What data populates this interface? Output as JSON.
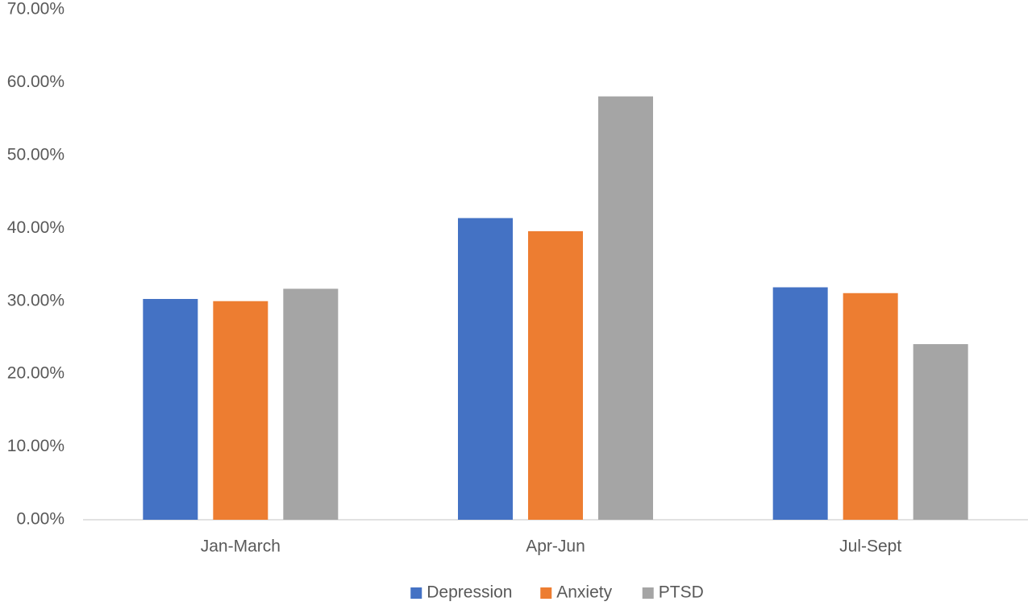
{
  "chart_data": {
    "type": "bar",
    "categories": [
      "Jan-March",
      "Apr-Jun",
      "Jul-Sept"
    ],
    "series": [
      {
        "name": "Depression",
        "color": "#4472c4",
        "values": [
          30.3,
          41.4,
          31.9
        ]
      },
      {
        "name": "Anxiety",
        "color": "#ed7d31",
        "values": [
          30.0,
          39.6,
          31.1
        ]
      },
      {
        "name": "PTSD",
        "color": "#a5a5a5",
        "values": [
          31.7,
          58.1,
          24.1
        ]
      }
    ],
    "ylim": [
      0,
      70
    ],
    "yticks": [
      {
        "value": 0,
        "label": "0.00%"
      },
      {
        "value": 10,
        "label": "10.00%"
      },
      {
        "value": 20,
        "label": "20.00%"
      },
      {
        "value": 30,
        "label": "30.00%"
      },
      {
        "value": 40,
        "label": "40.00%"
      },
      {
        "value": 50,
        "label": "50.00%"
      },
      {
        "value": 60,
        "label": "60.00%"
      },
      {
        "value": 70,
        "label": "70.00%"
      }
    ],
    "grid": false,
    "legend": "bottom"
  }
}
